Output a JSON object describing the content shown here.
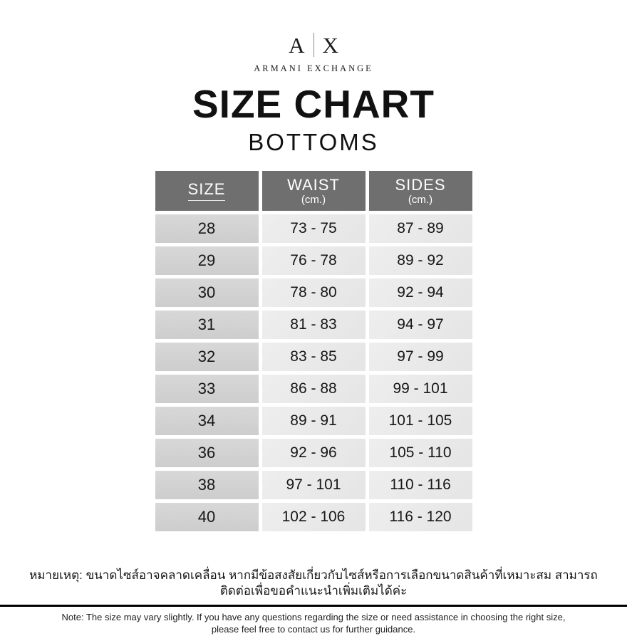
{
  "brand": {
    "logo_a": "A",
    "logo_x": "X",
    "name": "ARMANI EXCHANGE"
  },
  "header": {
    "title": "SIZE CHART",
    "subtitle": "BOTTOMS"
  },
  "table": {
    "columns": [
      {
        "label": "SIZE",
        "sub": ""
      },
      {
        "label": "WAIST",
        "sub": "(cm.)"
      },
      {
        "label": "SIDES",
        "sub": "(cm.)"
      }
    ],
    "rows": [
      {
        "size": "28",
        "waist": "73 - 75",
        "sides": "87 - 89"
      },
      {
        "size": "29",
        "waist": "76 - 78",
        "sides": "89 - 92"
      },
      {
        "size": "30",
        "waist": "78 - 80",
        "sides": "92 - 94"
      },
      {
        "size": "31",
        "waist": "81 - 83",
        "sides": "94 - 97"
      },
      {
        "size": "32",
        "waist": "83 - 85",
        "sides": "97 - 99"
      },
      {
        "size": "33",
        "waist": "86 - 88",
        "sides": "99 - 101"
      },
      {
        "size": "34",
        "waist": "89 - 91",
        "sides": "101 - 105"
      },
      {
        "size": "36",
        "waist": "92 - 96",
        "sides": "105 - 110"
      },
      {
        "size": "38",
        "waist": "97 - 101",
        "sides": "110 - 116"
      },
      {
        "size": "40",
        "waist": "102 - 106",
        "sides": "116 - 120"
      }
    ]
  },
  "notes": {
    "thai": "หมายเหตุ: ขนาดไซส์อาจคลาดเคลื่อน หากมีข้อสงสัยเกี่ยวกับไซส์หรือการเลือกขนาดสินค้าที่เหมาะสม สามารถติดต่อเพื่อขอคำแนะนำเพิ่มเติมได้ค่ะ",
    "english_line1": "Note: The size may vary slightly. If you have any questions regarding the size or need assistance in choosing the right size,",
    "english_line2": "please feel free to contact us for further guidance."
  },
  "colors": {
    "header_background": "#6f6f6f",
    "size_cell_background": "#d2d2d2",
    "value_cell_background": "#e9e9e9",
    "text": "#111111",
    "divider": "#000000"
  }
}
